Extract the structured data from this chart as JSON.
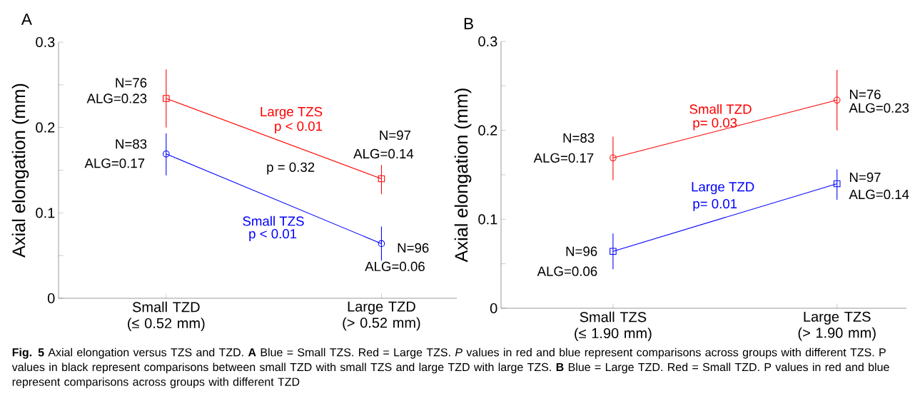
{
  "chart_data": [
    {
      "type": "line",
      "title": "A",
      "ylabel": "Axial elongation (mm)",
      "categories": [
        "Small TZD (≤ 0.52 mm)",
        "Large TZD (> 0.52 mm)"
      ],
      "ylim": [
        0,
        0.3
      ],
      "yticks": [
        0,
        {
          "value": 0.05,
          "label": null
        },
        0.1,
        {
          "value": 0.15,
          "label": null
        },
        0.2,
        {
          "value": 0.25,
          "label": null
        },
        0.3
      ],
      "series": [
        {
          "name": "Large TZS",
          "color": "#ff0000",
          "marker": "square",
          "values": [
            0.234,
            0.14
          ],
          "errors": [
            [
              0.2,
              0.268
            ],
            [
              0.122,
              0.156
            ]
          ]
        },
        {
          "name": "Small TZS",
          "color": "#0000ff",
          "marker": "circle",
          "values": [
            0.169,
            0.064
          ],
          "errors": [
            [
              0.144,
              0.193
            ],
            [
              0.044,
              0.084
            ]
          ]
        }
      ],
      "annotations": [
        {
          "text": "N=76",
          "x": "Small TZD (≤ 0.52 mm)",
          "y": 0.234
        },
        {
          "text": "ALG=0.23",
          "x": "Small TZD (≤ 0.52 mm)",
          "y": 0.234
        },
        {
          "text": "N=83",
          "x": "Small TZD (≤ 0.52 mm)",
          "y": 0.169
        },
        {
          "text": "ALG=0.17",
          "x": "Small TZD (≤ 0.52 mm)",
          "y": 0.169
        },
        {
          "text": "N=97",
          "x": "Large TZD (> 0.52 mm)",
          "y": 0.14
        },
        {
          "text": "ALG=0.14",
          "x": "Large TZD (> 0.52 mm)",
          "y": 0.14
        },
        {
          "text": "N=96",
          "x": "Large TZD (> 0.52 mm)",
          "y": 0.064
        },
        {
          "text": "ALG=0.06",
          "x": "Large TZD (> 0.52 mm)",
          "y": 0.064
        },
        "p < 0.01",
        "p < 0.01",
        "p = 0.32",
        "**Fig. 5** Axial elongation versus TZS and TZD. **A** Blue = Small TZS. Red = Large TZS. *P* values in red and blue represent comparisons across groups with different TZS. P values in black represent comparisons between small TZD with small TZS and large TZD with large TZS. **B** Blue = Large TZD. Red = Small TZD. P values in red and blue represent comparisons across groups with different TZD"
      ]
    },
    {
      "type": "line",
      "title": "B",
      "ylabel": "Axial elongation (mm)",
      "categories": [
        "Small TZS (≤ 1.90 mm)",
        "Large TZS (> 1.90 mm)"
      ],
      "ylim": [
        0,
        0.3
      ],
      "yticks": [
        0,
        {
          "value": 0.05,
          "label": null
        },
        0.1,
        {
          "value": 0.15,
          "label": null
        },
        0.2,
        {
          "value": 0.25,
          "label": null
        },
        0.3
      ],
      "series": [
        {
          "name": "Small TZD",
          "color": "#ff0000",
          "marker": "circle",
          "values": [
            0.169,
            0.234
          ],
          "errors": [
            [
              0.144,
              0.193
            ],
            [
              0.2,
              0.268
            ]
          ]
        },
        {
          "name": "Large TZD",
          "color": "#0000ff",
          "marker": "square",
          "values": [
            0.064,
            0.14
          ],
          "errors": [
            [
              0.044,
              0.084
            ],
            [
              0.122,
              0.156
            ]
          ]
        }
      ],
      "annotations": [
        {
          "text": "N=83",
          "x": "Small TZS (≤ 1.90 mm)",
          "y": 0.169
        },
        {
          "text": "ALG=0.17",
          "x": "Small TZS (≤ 1.90 mm)",
          "y": 0.169
        },
        {
          "text": "N=76",
          "x": "Large TZS (> 1.90 mm)",
          "y": 0.234
        },
        {
          "text": "ALG=0.23",
          "x": "Large TZS (> 1.90 mm)",
          "y": 0.234
        },
        {
          "text": "N=96",
          "x": "Small TZS (≤ 1.90 mm)",
          "y": 0.064
        },
        {
          "text": "ALG=0.06",
          "x": "Small TZS (≤ 1.90 mm)",
          "y": 0.064
        },
        {
          "text": "N=97",
          "x": "Large TZS (> 1.90 mm)",
          "y": 0.14
        },
        {
          "text": "ALG=0.14",
          "x": "Large TZS (> 1.90 mm)",
          "y": 0.14
        },
        "p= 0.03",
        "p= 0.01"
      ]
    }
  ]
}
